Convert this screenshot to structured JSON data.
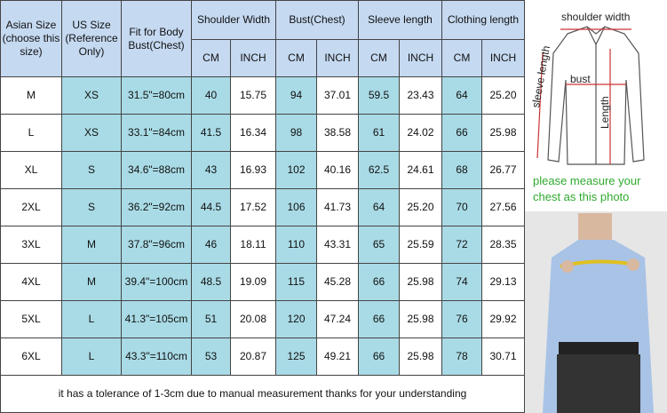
{
  "table": {
    "header": [
      "Asian Size (choose this size)",
      "US Size (Reference Only)",
      "Fit for Body Bust(Chest)",
      "Shoulder Width",
      "Bust(Chest)",
      "Sleeve length",
      "Clothing length"
    ],
    "units": [
      "CM",
      "INCH",
      "CM",
      "INCH",
      "CM",
      "INCH",
      "CM",
      "INCH"
    ],
    "rows": [
      [
        "M",
        "XS",
        "31.5\"=80cm",
        "40",
        "15.75",
        "94",
        "37.01",
        "59.5",
        "23.43",
        "64",
        "25.20"
      ],
      [
        "L",
        "XS",
        "33.1\"=84cm",
        "41.5",
        "16.34",
        "98",
        "38.58",
        "61",
        "24.02",
        "66",
        "25.98"
      ],
      [
        "XL",
        "S",
        "34.6\"=88cm",
        "43",
        "16.93",
        "102",
        "40.16",
        "62.5",
        "24.61",
        "68",
        "26.77"
      ],
      [
        "2XL",
        "S",
        "36.2\"=92cm",
        "44.5",
        "17.52",
        "106",
        "41.73",
        "64",
        "25.20",
        "70",
        "27.56"
      ],
      [
        "3XL",
        "M",
        "37.8\"=96cm",
        "46",
        "18.11",
        "110",
        "43.31",
        "65",
        "25.59",
        "72",
        "28.35"
      ],
      [
        "4XL",
        "M",
        "39.4\"=100cm",
        "48.5",
        "19.09",
        "115",
        "45.28",
        "66",
        "25.98",
        "74",
        "29.13"
      ],
      [
        "5XL",
        "L",
        "41.3\"=105cm",
        "51",
        "20.08",
        "120",
        "47.24",
        "66",
        "25.98",
        "76",
        "29.92"
      ],
      [
        "6XL",
        "L",
        "43.3\"=110cm",
        "53",
        "20.87",
        "125",
        "49.21",
        "66",
        "25.98",
        "78",
        "30.71"
      ]
    ],
    "footer": "it has a tolerance of 1-3cm due to manual measurement thanks for your understanding"
  },
  "diagram": {
    "shoulder": "shoulder width",
    "bust": "bust",
    "sleeve": "sleeve length",
    "length": "Length"
  },
  "caption": "please measure your chest as this photo"
}
